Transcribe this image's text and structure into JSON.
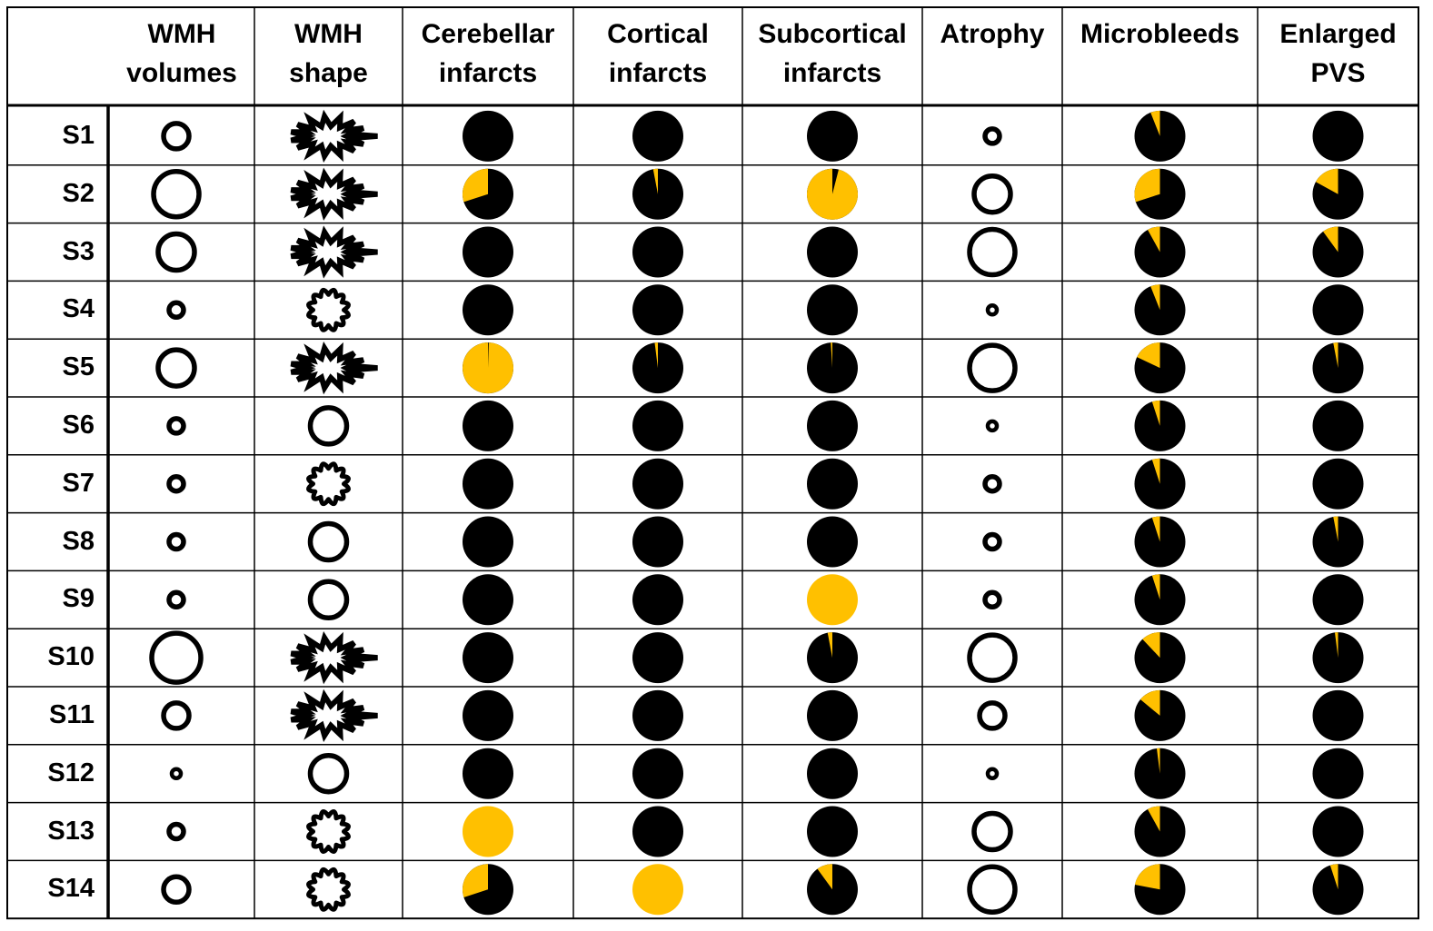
{
  "colors": {
    "filled": "#000000",
    "highlight": "#FFC000",
    "grid": "#000000"
  },
  "columns": [
    {
      "key": "wmh_volume",
      "lines": [
        "WMH",
        "volumes"
      ],
      "kind": "ring-size"
    },
    {
      "key": "wmh_shape",
      "lines": [
        "WMH",
        "shape"
      ],
      "kind": "shape"
    },
    {
      "key": "cerebellar",
      "lines": [
        "Cerebellar",
        "infarcts"
      ],
      "kind": "pie"
    },
    {
      "key": "cortical",
      "lines": [
        "Cortical",
        "infarcts"
      ],
      "kind": "pie"
    },
    {
      "key": "subcortical",
      "lines": [
        "Subcortical",
        "infarcts"
      ],
      "kind": "pie"
    },
    {
      "key": "atrophy",
      "lines": [
        "Atrophy"
      ],
      "kind": "ring-size"
    },
    {
      "key": "microbleeds",
      "lines": [
        "Microbleeds"
      ],
      "kind": "pie"
    },
    {
      "key": "pvs",
      "lines": [
        "Enlarged",
        "PVS"
      ],
      "kind": "pie"
    }
  ],
  "rows": [
    {
      "label": "S1",
      "wmh_volume": "medium-small",
      "wmh_shape": "burst",
      "cerebellar": 0,
      "cortical": 0,
      "subcortical": 0,
      "atrophy": "small",
      "microbleeds": 0.06,
      "pvs": 0
    },
    {
      "label": "S2",
      "wmh_volume": "large",
      "wmh_shape": "burst",
      "cerebellar": 0.3,
      "cortical": 0.03,
      "subcortical": 0.96,
      "atrophy": "medium",
      "microbleeds": 0.3,
      "pvs": 0.17
    },
    {
      "label": "S3",
      "wmh_volume": "medium",
      "wmh_shape": "burst",
      "cerebellar": 0,
      "cortical": 0,
      "subcortical": 0,
      "atrophy": "large",
      "microbleeds": 0.08,
      "pvs": 0.1
    },
    {
      "label": "S4",
      "wmh_volume": "small",
      "wmh_shape": "cloud",
      "cerebellar": 0,
      "cortical": 0,
      "subcortical": 0,
      "atrophy": "tiny",
      "microbleeds": 0.06,
      "pvs": 0
    },
    {
      "label": "S5",
      "wmh_volume": "medium",
      "wmh_shape": "burst",
      "cerebellar": 0.995,
      "cortical": 0.02,
      "subcortical": 0.01,
      "atrophy": "large",
      "microbleeds": 0.18,
      "pvs": 0.03
    },
    {
      "label": "S6",
      "wmh_volume": "small",
      "wmh_shape": "ring",
      "cerebellar": 0,
      "cortical": 0,
      "subcortical": 0,
      "atrophy": "tiny",
      "microbleeds": 0.05,
      "pvs": 0
    },
    {
      "label": "S7",
      "wmh_volume": "small",
      "wmh_shape": "cloud",
      "cerebellar": 0,
      "cortical": 0,
      "subcortical": 0,
      "atrophy": "small",
      "microbleeds": 0.05,
      "pvs": 0
    },
    {
      "label": "S8",
      "wmh_volume": "small",
      "wmh_shape": "ring",
      "cerebellar": 0,
      "cortical": 0,
      "subcortical": 0,
      "atrophy": "small",
      "microbleeds": 0.05,
      "pvs": 0.03
    },
    {
      "label": "S9",
      "wmh_volume": "small",
      "wmh_shape": "ring",
      "cerebellar": 0,
      "cortical": 0,
      "subcortical": 1,
      "atrophy": "small",
      "microbleeds": 0.05,
      "pvs": 0
    },
    {
      "label": "S10",
      "wmh_volume": "xlarge",
      "wmh_shape": "burst",
      "cerebellar": 0,
      "cortical": 0,
      "subcortical": 0.03,
      "atrophy": "large",
      "microbleeds": 0.12,
      "pvs": 0.02
    },
    {
      "label": "S11",
      "wmh_volume": "medium-small",
      "wmh_shape": "burst",
      "cerebellar": 0,
      "cortical": 0,
      "subcortical": 0,
      "atrophy": "medium-small",
      "microbleeds": 0.14,
      "pvs": 0
    },
    {
      "label": "S12",
      "wmh_volume": "tiny",
      "wmh_shape": "ring",
      "cerebellar": 0,
      "cortical": 0,
      "subcortical": 0,
      "atrophy": "tiny",
      "microbleeds": 0.02,
      "pvs": 0
    },
    {
      "label": "S13",
      "wmh_volume": "small",
      "wmh_shape": "cloud",
      "cerebellar": 1,
      "cortical": 0,
      "subcortical": 0,
      "atrophy": "medium",
      "microbleeds": 0.08,
      "pvs": 0
    },
    {
      "label": "S14",
      "wmh_volume": "medium-small",
      "wmh_shape": "cloud",
      "cerebellar": 0.3,
      "cortical": 1,
      "subcortical": 0.1,
      "atrophy": "large",
      "microbleeds": 0.22,
      "pvs": 0.05
    }
  ]
}
